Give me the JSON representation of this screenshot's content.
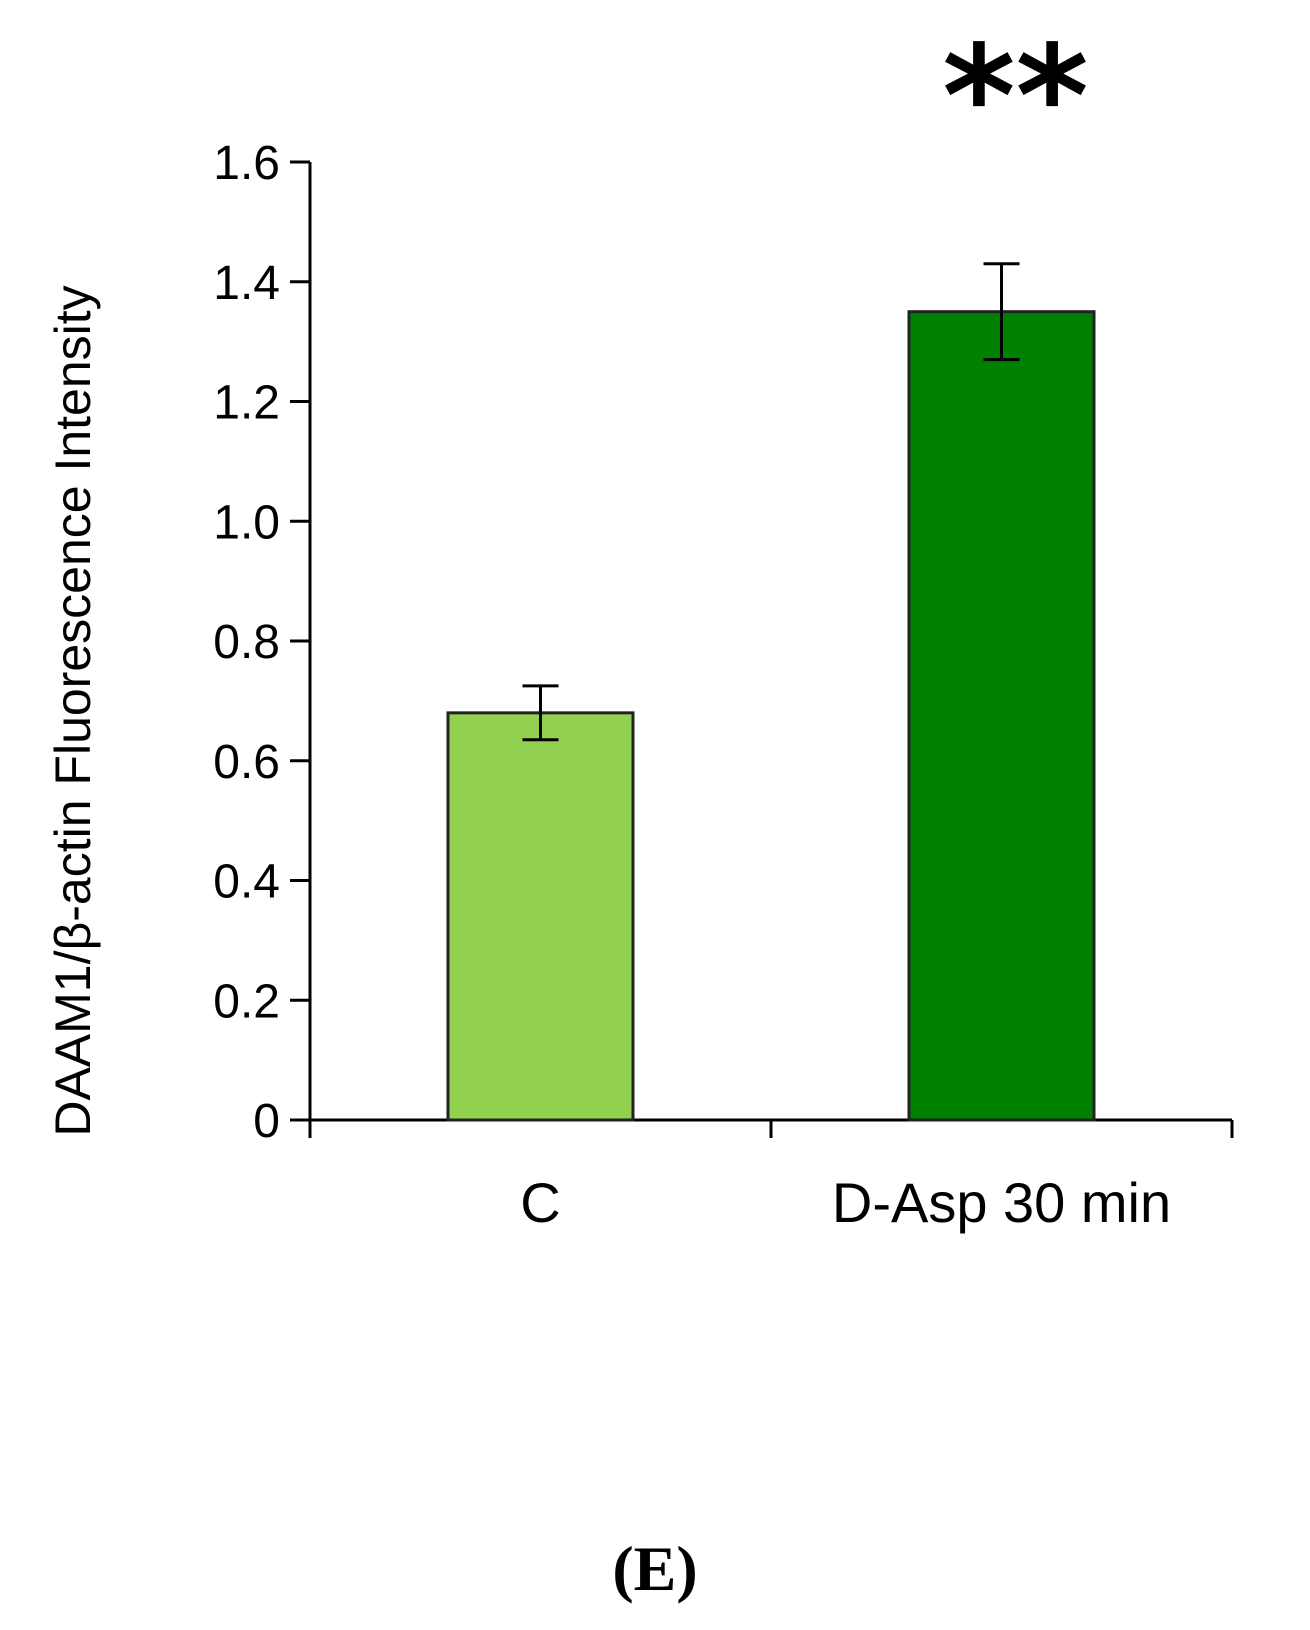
{
  "panel_label": "(E)",
  "chart_data": {
    "type": "bar",
    "categories": [
      "C",
      "D-Asp 30 min"
    ],
    "values": [
      0.68,
      1.35
    ],
    "errors": [
      0.045,
      0.08
    ],
    "annotations": [
      "",
      "**"
    ],
    "colors": [
      "#92d050",
      "#008000"
    ],
    "xlabel": "",
    "ylabel": "DAAM1/β-actin Fluorescence Intensity",
    "ylim": [
      0,
      1.6
    ],
    "yticks": [
      "0",
      "0.2",
      "0.4",
      "0.6",
      "0.8",
      "1.0",
      "1.2",
      "1.4",
      "1.6"
    ],
    "grid": false
  }
}
